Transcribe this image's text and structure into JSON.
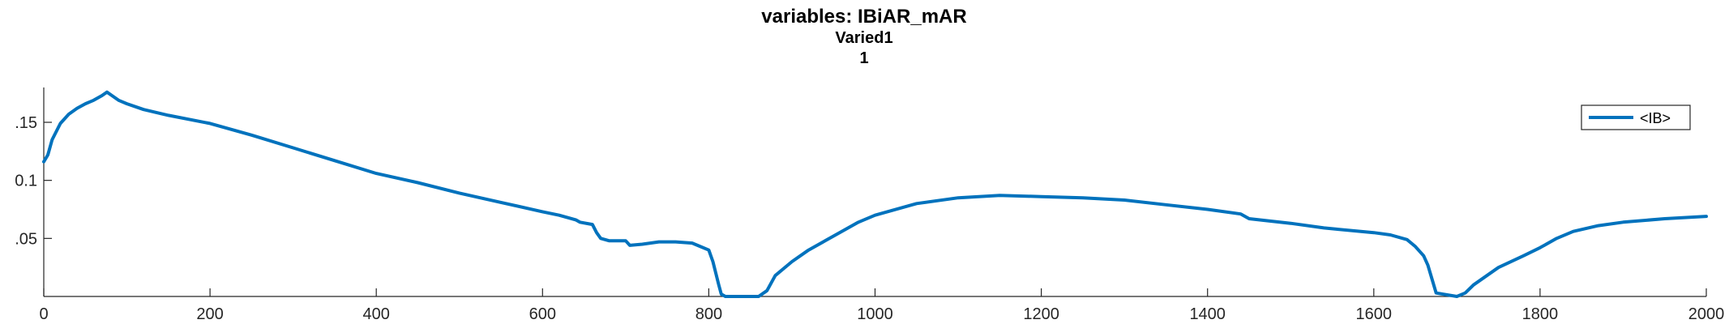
{
  "chart_data": {
    "type": "line",
    "title": "variables: IBiAR_mAR",
    "subtitle": "Varied1",
    "subtitle2": "1",
    "xlabel": "",
    "ylabel": "",
    "xlim": [
      0,
      2000
    ],
    "ylim": [
      0,
      0.18
    ],
    "xticks": [
      0,
      200,
      400,
      600,
      800,
      1000,
      1200,
      1400,
      1600,
      1800,
      2000
    ],
    "yticks": [
      0.05,
      0.1,
      0.15
    ],
    "ytick_labels": [
      ".05",
      "0.1",
      ".15"
    ],
    "grid": false,
    "legend_position": "top-right",
    "line_color": "#0072BD",
    "series": [
      {
        "name": "<IB>",
        "x": [
          0,
          5,
          10,
          20,
          30,
          40,
          50,
          60,
          70,
          76,
          82,
          90,
          100,
          120,
          150,
          200,
          250,
          300,
          350,
          400,
          450,
          500,
          550,
          600,
          620,
          640,
          645,
          660,
          665,
          670,
          680,
          700,
          705,
          720,
          740,
          760,
          780,
          790,
          800,
          805,
          812,
          815,
          820,
          825,
          860,
          870,
          880,
          900,
          920,
          950,
          980,
          1000,
          1050,
          1100,
          1150,
          1200,
          1250,
          1300,
          1350,
          1400,
          1440,
          1450,
          1500,
          1540,
          1555,
          1600,
          1620,
          1640,
          1650,
          1660,
          1665,
          1670,
          1675,
          1700,
          1710,
          1720,
          1750,
          1780,
          1800,
          1820,
          1840,
          1870,
          1900,
          1950,
          2000
        ],
        "values": [
          0.116,
          0.122,
          0.135,
          0.149,
          0.157,
          0.162,
          0.166,
          0.169,
          0.173,
          0.176,
          0.173,
          0.169,
          0.166,
          0.161,
          0.156,
          0.149,
          0.139,
          0.128,
          0.117,
          0.106,
          0.098,
          0.089,
          0.081,
          0.073,
          0.07,
          0.066,
          0.064,
          0.062,
          0.055,
          0.05,
          0.048,
          0.048,
          0.044,
          0.045,
          0.047,
          0.047,
          0.046,
          0.043,
          0.04,
          0.03,
          0.01,
          0.002,
          0.0,
          0.0,
          0.0,
          0.005,
          0.018,
          0.03,
          0.04,
          0.052,
          0.064,
          0.07,
          0.08,
          0.085,
          0.087,
          0.086,
          0.085,
          0.083,
          0.079,
          0.075,
          0.071,
          0.067,
          0.063,
          0.059,
          0.058,
          0.055,
          0.053,
          0.049,
          0.043,
          0.035,
          0.027,
          0.015,
          0.003,
          0.0,
          0.003,
          0.01,
          0.025,
          0.035,
          0.042,
          0.05,
          0.056,
          0.061,
          0.064,
          0.067,
          0.069
        ]
      }
    ]
  }
}
